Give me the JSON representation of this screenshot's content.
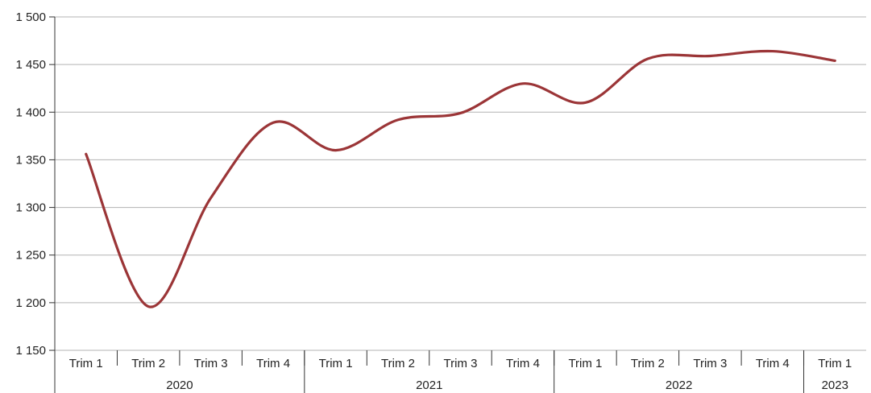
{
  "chart_data": {
    "type": "line",
    "categories": [
      "Trim 1",
      "Trim 2",
      "Trim 3",
      "Trim 4",
      "Trim 1",
      "Trim 2",
      "Trim 3",
      "Trim 4",
      "Trim 1",
      "Trim 2",
      "Trim 3",
      "Trim 4",
      "Trim 1"
    ],
    "groups": [
      {
        "label": "2020",
        "count": 4
      },
      {
        "label": "2021",
        "count": 4
      },
      {
        "label": "2022",
        "count": 4
      },
      {
        "label": "2023",
        "count": 1
      }
    ],
    "series": [
      {
        "values": [
          1356,
          1196,
          1310,
          1389,
          1360,
          1392,
          1399,
          1430,
          1410,
          1456,
          1459,
          1464,
          1454
        ]
      }
    ],
    "y_ticks": [
      1150,
      1200,
      1250,
      1300,
      1350,
      1400,
      1450,
      1500
    ],
    "y_tick_labels": [
      "1 150",
      "1 200",
      "1 250",
      "1 300",
      "1 350",
      "1 400",
      "1 450",
      "1 500"
    ],
    "ylim": [
      1150,
      1500
    ],
    "grid": true,
    "line_color": "#9b3537",
    "grid_color": "#b3b3b3",
    "title": "",
    "xlabel": "",
    "ylabel": ""
  }
}
